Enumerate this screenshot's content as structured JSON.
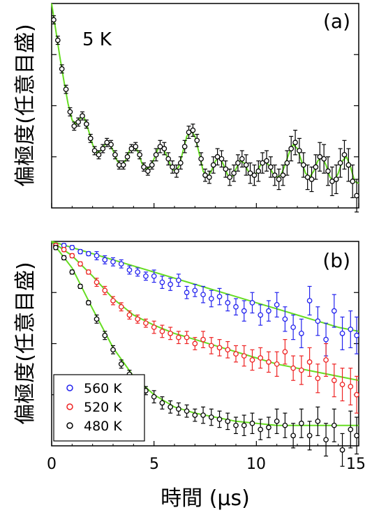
{
  "chart_data": [
    {
      "type": "scatter",
      "panel_label": "(a)",
      "annotation": "5 K",
      "ylabel": "偏極度(任意目盛)",
      "xlim": [
        0,
        15
      ],
      "ylim": [
        0,
        1
      ],
      "x_ticks": [
        "0",
        "5",
        "10",
        "15"
      ],
      "series": [
        {
          "color": "#000000",
          "marker": "open-circle",
          "fit_color": "#66dd22",
          "x": [
            0.1,
            0.3,
            0.5,
            0.7,
            0.9,
            1.1,
            1.3,
            1.5,
            1.7,
            1.9,
            2.1,
            2.3,
            2.5,
            2.7,
            2.9,
            3.1,
            3.3,
            3.5,
            3.7,
            3.9,
            4.1,
            4.3,
            4.5,
            4.7,
            4.9,
            5.1,
            5.3,
            5.5,
            5.7,
            5.9,
            6.1,
            6.3,
            6.5,
            6.7,
            6.9,
            7.1,
            7.3,
            7.5,
            7.7,
            7.9,
            8.1,
            8.3,
            8.5,
            8.7,
            8.9,
            9.1,
            9.3,
            9.5,
            9.7,
            9.9,
            10.1,
            10.3,
            10.5,
            10.7,
            10.9,
            11.1,
            11.3,
            11.5,
            11.7,
            11.9,
            12.1,
            12.3,
            12.5,
            12.7,
            12.9,
            13.1,
            13.3,
            13.5,
            13.7,
            13.9,
            14.1,
            14.3,
            14.5,
            14.7,
            14.9
          ],
          "y": [
            0.92,
            0.82,
            0.68,
            0.58,
            0.47,
            0.4,
            0.42,
            0.45,
            0.41,
            0.34,
            0.28,
            0.26,
            0.29,
            0.32,
            0.31,
            0.26,
            0.21,
            0.21,
            0.25,
            0.29,
            0.3,
            0.26,
            0.2,
            0.18,
            0.21,
            0.26,
            0.3,
            0.29,
            0.24,
            0.2,
            0.18,
            0.22,
            0.3,
            0.37,
            0.38,
            0.33,
            0.24,
            0.16,
            0.15,
            0.21,
            0.25,
            0.24,
            0.19,
            0.15,
            0.17,
            0.22,
            0.24,
            0.21,
            0.17,
            0.16,
            0.18,
            0.22,
            0.23,
            0.2,
            0.16,
            0.14,
            0.16,
            0.22,
            0.29,
            0.32,
            0.28,
            0.21,
            0.15,
            0.14,
            0.2,
            0.25,
            0.24,
            0.18,
            0.13,
            0.14,
            0.22,
            0.26,
            0.21,
            0.13,
            0.06
          ],
          "err": [
            0.02,
            0.02,
            0.02,
            0.02,
            0.02,
            0.02,
            0.02,
            0.02,
            0.02,
            0.02,
            0.02,
            0.02,
            0.02,
            0.02,
            0.02,
            0.02,
            0.02,
            0.02,
            0.02,
            0.02,
            0.02,
            0.02,
            0.02,
            0.02,
            0.02,
            0.03,
            0.03,
            0.03,
            0.03,
            0.03,
            0.03,
            0.03,
            0.03,
            0.03,
            0.03,
            0.03,
            0.03,
            0.03,
            0.03,
            0.04,
            0.04,
            0.04,
            0.04,
            0.04,
            0.04,
            0.04,
            0.04,
            0.05,
            0.05,
            0.05,
            0.05,
            0.05,
            0.05,
            0.05,
            0.05,
            0.05,
            0.05,
            0.06,
            0.06,
            0.06,
            0.06,
            0.06,
            0.06,
            0.06,
            0.06,
            0.07,
            0.07,
            0.07,
            0.07,
            0.07,
            0.07,
            0.07,
            0.08,
            0.08,
            0.08
          ],
          "fit_x": [
            0,
            0.2,
            0.4,
            0.6,
            0.8,
            1.0,
            1.2,
            1.4,
            1.6,
            1.8,
            2.0,
            2.2,
            2.4,
            2.6,
            2.8,
            3.0,
            3.2,
            3.4,
            3.6,
            3.8,
            4.0,
            4.2,
            4.4,
            4.6,
            4.8,
            5.0,
            5.2,
            5.4,
            5.6,
            5.8,
            6.0,
            6.2,
            6.4,
            6.6,
            6.8,
            7.0,
            7.2,
            7.4,
            7.6,
            7.8,
            8.0,
            8.2,
            8.4,
            8.6,
            8.8,
            9.0,
            9.2,
            9.4,
            9.6,
            9.8,
            10.0,
            10.2,
            10.4,
            10.6,
            10.8,
            11.0,
            11.2,
            11.4,
            11.6,
            11.8,
            12.0,
            12.2,
            12.4,
            12.6,
            12.8,
            13.0,
            13.2,
            13.4,
            13.6,
            13.8,
            14.0,
            14.2,
            14.4,
            14.6,
            14.8,
            15.0
          ],
          "fit_y": [
            1.0,
            0.87,
            0.74,
            0.62,
            0.51,
            0.43,
            0.41,
            0.44,
            0.44,
            0.38,
            0.31,
            0.27,
            0.28,
            0.31,
            0.32,
            0.28,
            0.23,
            0.21,
            0.23,
            0.28,
            0.3,
            0.28,
            0.22,
            0.19,
            0.2,
            0.24,
            0.29,
            0.3,
            0.26,
            0.21,
            0.18,
            0.2,
            0.27,
            0.35,
            0.38,
            0.35,
            0.27,
            0.18,
            0.15,
            0.18,
            0.23,
            0.25,
            0.21,
            0.16,
            0.15,
            0.19,
            0.23,
            0.22,
            0.18,
            0.16,
            0.17,
            0.21,
            0.23,
            0.21,
            0.17,
            0.15,
            0.16,
            0.21,
            0.27,
            0.31,
            0.29,
            0.23,
            0.17,
            0.15,
            0.18,
            0.23,
            0.25,
            0.21,
            0.15,
            0.13,
            0.17,
            0.23,
            0.25,
            0.2,
            0.13,
            0.12
          ]
        }
      ]
    },
    {
      "type": "scatter",
      "panel_label": "(b)",
      "ylabel": "偏極度(任意目盛)",
      "xlabel": "時間 (μs)",
      "xlim": [
        0,
        15
      ],
      "ylim": [
        0,
        1
      ],
      "x_ticks": [
        "0",
        "5",
        "10",
        "15"
      ],
      "legend_position": "bottom-left",
      "series": [
        {
          "name": "560 K",
          "color": "#2222ee",
          "fit_color": "#66dd22",
          "x": [
            0.2,
            0.6,
            1.0,
            1.4,
            1.8,
            2.2,
            2.6,
            3.0,
            3.4,
            3.8,
            4.2,
            4.6,
            5.0,
            5.4,
            5.8,
            6.2,
            6.6,
            7.0,
            7.4,
            7.8,
            8.2,
            8.6,
            9.0,
            9.4,
            9.8,
            10.2,
            10.6,
            11.0,
            11.4,
            11.8,
            12.2,
            12.6,
            13.0,
            13.4,
            13.8,
            14.2,
            14.6,
            14.9
          ],
          "y": [
            0.98,
            0.98,
            0.97,
            0.95,
            0.94,
            0.93,
            0.91,
            0.9,
            0.89,
            0.86,
            0.85,
            0.83,
            0.83,
            0.8,
            0.79,
            0.81,
            0.75,
            0.76,
            0.74,
            0.72,
            0.73,
            0.7,
            0.68,
            0.66,
            0.7,
            0.64,
            0.66,
            0.69,
            0.62,
            0.58,
            0.55,
            0.71,
            0.61,
            0.52,
            0.66,
            0.55,
            0.57,
            0.54
          ],
          "err": [
            0.01,
            0.01,
            0.01,
            0.01,
            0.01,
            0.02,
            0.02,
            0.02,
            0.02,
            0.02,
            0.02,
            0.02,
            0.03,
            0.03,
            0.03,
            0.03,
            0.03,
            0.03,
            0.04,
            0.04,
            0.04,
            0.04,
            0.04,
            0.05,
            0.05,
            0.05,
            0.05,
            0.06,
            0.06,
            0.06,
            0.07,
            0.07,
            0.07,
            0.08,
            0.08,
            0.08,
            0.09,
            0.09
          ],
          "fit_x": [
            0,
            1,
            2,
            3,
            4,
            5,
            6,
            7,
            8,
            9,
            10,
            11,
            12,
            13,
            14,
            15
          ],
          "fit_y": [
            1.0,
            0.97,
            0.94,
            0.91,
            0.88,
            0.85,
            0.82,
            0.79,
            0.76,
            0.73,
            0.7,
            0.67,
            0.64,
            0.61,
            0.58,
            0.56
          ]
        },
        {
          "name": "520 K",
          "color": "#ee2222",
          "fit_color": "#66dd22",
          "x": [
            0.2,
            0.6,
            1.0,
            1.4,
            1.8,
            2.2,
            2.6,
            3.0,
            3.4,
            3.8,
            4.2,
            4.6,
            5.0,
            5.4,
            5.8,
            6.2,
            6.6,
            7.0,
            7.4,
            7.8,
            8.2,
            8.6,
            9.0,
            9.4,
            9.8,
            10.2,
            10.6,
            11.0,
            11.4,
            11.8,
            12.2,
            12.6,
            13.0,
            13.4,
            13.8,
            14.2,
            14.6,
            14.9
          ],
          "y": [
            0.98,
            0.96,
            0.93,
            0.89,
            0.85,
            0.8,
            0.76,
            0.71,
            0.68,
            0.64,
            0.62,
            0.6,
            0.58,
            0.56,
            0.55,
            0.53,
            0.53,
            0.5,
            0.52,
            0.49,
            0.48,
            0.47,
            0.45,
            0.44,
            0.42,
            0.43,
            0.41,
            0.4,
            0.46,
            0.38,
            0.37,
            0.41,
            0.33,
            0.42,
            0.32,
            0.3,
            0.29,
            0.25
          ],
          "err": [
            0.01,
            0.01,
            0.01,
            0.01,
            0.01,
            0.02,
            0.02,
            0.02,
            0.02,
            0.02,
            0.02,
            0.02,
            0.03,
            0.03,
            0.03,
            0.03,
            0.03,
            0.03,
            0.04,
            0.04,
            0.04,
            0.04,
            0.04,
            0.05,
            0.05,
            0.05,
            0.05,
            0.06,
            0.06,
            0.06,
            0.07,
            0.07,
            0.07,
            0.08,
            0.08,
            0.08,
            0.09,
            0.09
          ],
          "fit_x": [
            0,
            1,
            2,
            3,
            4,
            5,
            6,
            7,
            8,
            9,
            10,
            11,
            12,
            13,
            14,
            15
          ],
          "fit_y": [
            1.0,
            0.93,
            0.83,
            0.72,
            0.64,
            0.59,
            0.55,
            0.52,
            0.49,
            0.46,
            0.43,
            0.4,
            0.38,
            0.36,
            0.34,
            0.32
          ]
        },
        {
          "name": "480 K",
          "color": "#000000",
          "fit_color": "#66dd22",
          "x": [
            0.2,
            0.6,
            1.0,
            1.4,
            1.8,
            2.2,
            2.6,
            3.0,
            3.4,
            3.8,
            4.2,
            4.6,
            5.0,
            5.4,
            5.8,
            6.2,
            6.6,
            7.0,
            7.4,
            7.8,
            8.2,
            8.6,
            9.0,
            9.4,
            9.8,
            10.2,
            10.6,
            11.0,
            11.4,
            11.8,
            12.2,
            12.6,
            13.0,
            13.4,
            13.8,
            14.2,
            14.6,
            14.9
          ],
          "y": [
            0.97,
            0.92,
            0.85,
            0.78,
            0.7,
            0.62,
            0.54,
            0.47,
            0.4,
            0.35,
            0.31,
            0.27,
            0.24,
            0.21,
            0.19,
            0.18,
            0.17,
            0.15,
            0.15,
            0.14,
            0.13,
            0.12,
            0.1,
            0.1,
            0.11,
            0.08,
            0.09,
            0.12,
            0.1,
            0.05,
            0.11,
            0.05,
            0.12,
            0.03,
            0.1,
            -0.02,
            0.08,
            0.05
          ],
          "err": [
            0.01,
            0.01,
            0.01,
            0.01,
            0.01,
            0.02,
            0.02,
            0.02,
            0.02,
            0.02,
            0.02,
            0.02,
            0.03,
            0.03,
            0.03,
            0.03,
            0.03,
            0.03,
            0.04,
            0.04,
            0.04,
            0.04,
            0.04,
            0.05,
            0.05,
            0.05,
            0.05,
            0.06,
            0.06,
            0.06,
            0.07,
            0.07,
            0.07,
            0.08,
            0.08,
            0.08,
            0.09,
            0.09
          ],
          "fit_x": [
            0,
            1,
            2,
            3,
            4,
            5,
            6,
            7,
            8,
            9,
            10,
            11,
            12,
            13,
            14,
            15
          ],
          "fit_y": [
            1.0,
            0.87,
            0.67,
            0.48,
            0.34,
            0.25,
            0.19,
            0.16,
            0.14,
            0.12,
            0.11,
            0.1,
            0.1,
            0.1,
            0.1,
            0.1
          ]
        }
      ]
    }
  ]
}
